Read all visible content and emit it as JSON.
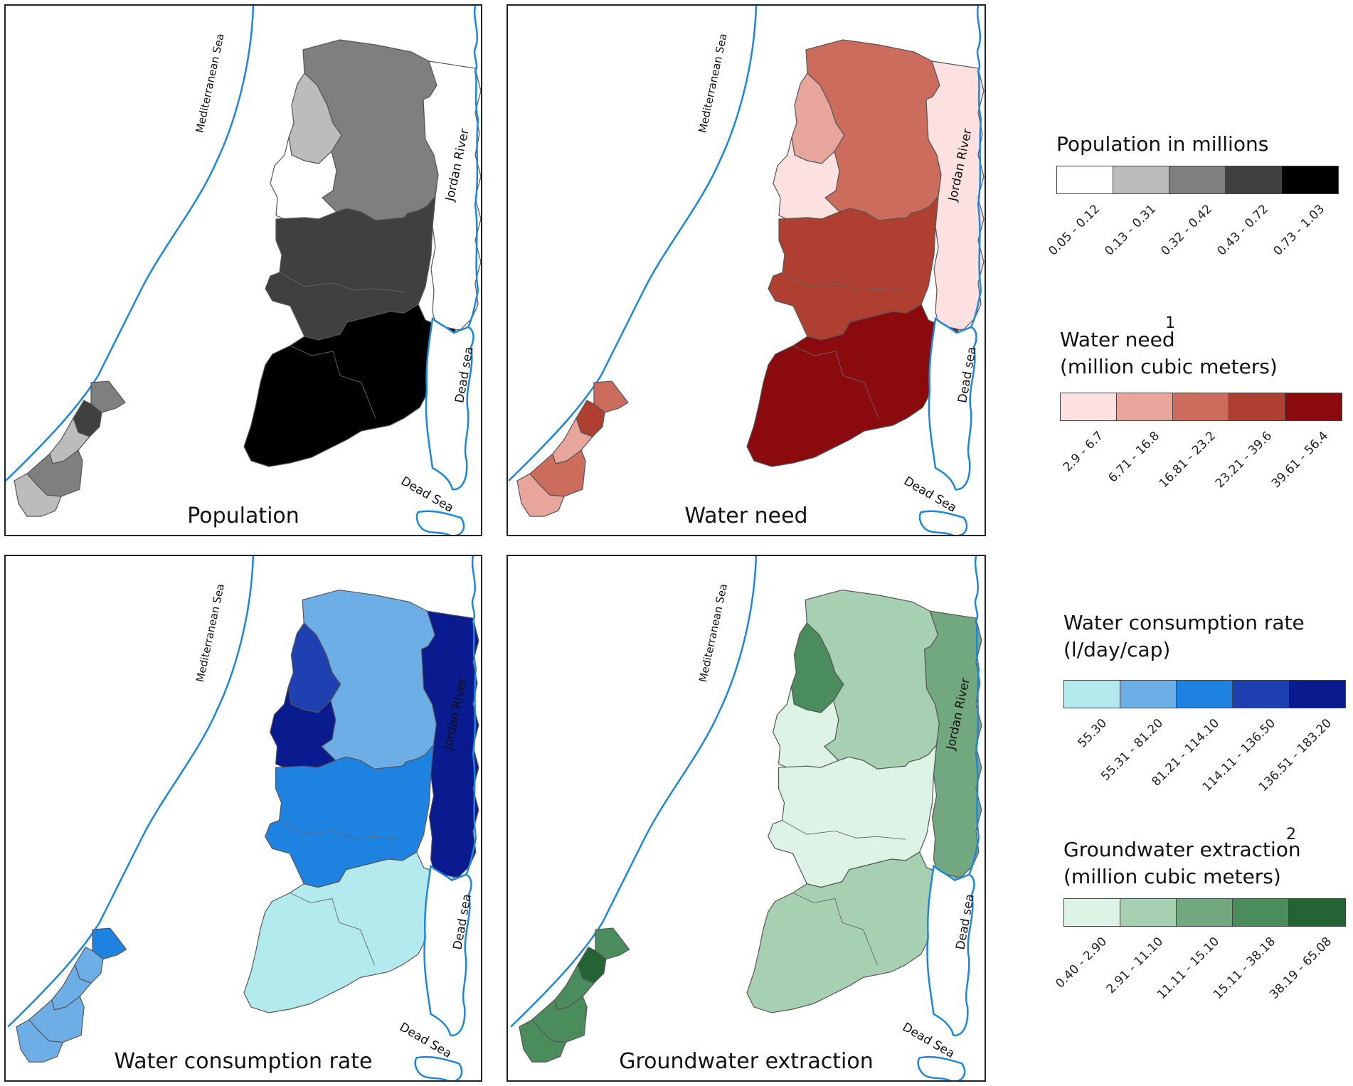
{
  "maps": [
    {
      "id": "population",
      "title": "Population",
      "colors": {
        "north": "#7f7f7f",
        "northwest": "#bcbcbc",
        "westcentral": "#ffffff",
        "jericho": "#ffffff",
        "center": "#404040",
        "south": "#000000",
        "gazaN": "#7f7f7f",
        "gazaCity": "#404040",
        "gazaMid": "#bcbcbc",
        "gazaKhan": "#7f7f7f",
        "gazaRafah": "#bcbcbc"
      }
    },
    {
      "id": "water-need",
      "title": "Water need",
      "colors": {
        "north": "#cc6c5c",
        "northwest": "#e8a59b",
        "westcentral": "#fde0e0",
        "jericho": "#fde0e0",
        "center": "#ae3f31",
        "south": "#8b0a0e",
        "gazaN": "#cc6c5c",
        "gazaCity": "#ae3f31",
        "gazaMid": "#e8a59b",
        "gazaKhan": "#cc6c5c",
        "gazaRafah": "#e8a59b"
      }
    },
    {
      "id": "water-consumption-rate",
      "title": "Water consumption rate",
      "colors": {
        "north": "#6eaee6",
        "northwest": "#1e40b0",
        "westcentral": "#0a1a8f",
        "jericho": "#0a1a8f",
        "center": "#1e82e0",
        "south": "#b3eaee",
        "gazaN": "#1e82e0",
        "gazaCity": "#6eaee6",
        "gazaMid": "#6eaee6",
        "gazaKhan": "#6eaee6",
        "gazaRafah": "#6eaee6"
      }
    },
    {
      "id": "groundwater-extraction",
      "title": "Groundwater extraction",
      "colors": {
        "north": "#a7cfb1",
        "northwest": "#4a8c5c",
        "westcentral": "#dcf3e6",
        "jericho": "#72a87f",
        "center": "#dcf3e6",
        "south": "#a7cfb1",
        "gazaN": "#4a8c5c",
        "gazaCity": "#246434",
        "gazaMid": "#4a8c5c",
        "gazaKhan": "#4a8c5c",
        "gazaRafah": "#4a8c5c"
      }
    }
  ],
  "map_labels": {
    "sea": "Mediterranean Sea",
    "river": "Jordan River",
    "dead_sea_upper": "Dead sea",
    "dead_sea_lower": "Dead Sea"
  },
  "legends": [
    {
      "id": "population",
      "title_lines": [
        "Population in millions"
      ],
      "superscript": "",
      "colors": [
        "#ffffff",
        "#bcbcbc",
        "#7f7f7f",
        "#404040",
        "#000000"
      ],
      "ranges": [
        "0.05 - 0.12",
        "0.13 - 0.31",
        "0.32 - 0.42",
        "0.43 - 0.72",
        "0.73 - 1.03"
      ]
    },
    {
      "id": "water-need",
      "title_lines": [
        "Water need",
        "(million cubic meters)"
      ],
      "superscript": "1",
      "colors": [
        "#fde0e0",
        "#e8a59b",
        "#cc6c5c",
        "#ae3f31",
        "#8b0a0e"
      ],
      "ranges": [
        "2.9 - 6.7",
        "6.71 - 16.8",
        "16.81 - 23.2",
        "23.21 - 39.6",
        "39.61 - 56.4"
      ]
    },
    {
      "id": "water-consumption",
      "title_lines": [
        "Water consumption rate",
        "(l/day/cap)"
      ],
      "superscript": "",
      "colors": [
        "#b3eaee",
        "#6eaee6",
        "#1e82e0",
        "#1e40b0",
        "#0a1a8f"
      ],
      "ranges": [
        "55.30",
        "55.31 - 81.20",
        "81.21 - 114.10",
        "114.11 - 136.50",
        "136.51 - 183.20"
      ]
    },
    {
      "id": "groundwater",
      "title_lines": [
        "Groundwater extraction",
        "(million cubic meters)"
      ],
      "superscript": "2",
      "colors": [
        "#dcf3e6",
        "#a7cfb1",
        "#72a87f",
        "#4a8c5c",
        "#246434"
      ],
      "ranges": [
        "0.40 - 2.90",
        "2.91 - 11.10",
        "11.11 - 15.10",
        "15.11 - 38.18",
        "38.19 - 65.08"
      ]
    }
  ]
}
